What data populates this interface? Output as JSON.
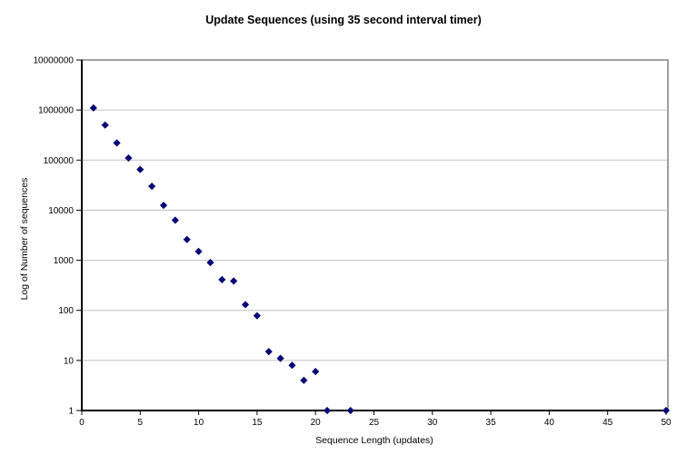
{
  "page": {
    "background": "#FFFFFF"
  },
  "chart_data": {
    "type": "scatter",
    "title": "Update Sequences (using 35 second interval timer)",
    "xlabel": "Sequence Length (updates)",
    "ylabel": "Log of Number of sequences",
    "x_scale": "linear",
    "y_scale": "log",
    "xlim": [
      0,
      50
    ],
    "ylim": [
      1,
      10000000
    ],
    "x_ticks": [
      0,
      5,
      10,
      15,
      20,
      25,
      30,
      35,
      40,
      45,
      50
    ],
    "y_ticks": [
      1,
      10,
      100,
      1000,
      10000,
      100000,
      1000000,
      10000000
    ],
    "grid": "horizontal",
    "legend": "none",
    "marker": "diamond",
    "x": [
      1,
      2,
      3,
      4,
      5,
      6,
      7,
      8,
      9,
      10,
      11,
      12,
      13,
      14,
      15,
      16,
      17,
      18,
      19,
      20,
      21,
      23,
      50
    ],
    "y": [
      1100000,
      500000,
      220000,
      110000,
      65000,
      30000,
      12500,
      6300,
      2600,
      1500,
      900,
      410,
      385,
      130,
      78,
      15,
      11,
      8,
      4,
      6,
      1,
      1,
      1
    ],
    "colors": {
      "marker": "#000080",
      "marker_edge": "#000060",
      "gridline": "#C0C0C0",
      "axis": "#000000",
      "plot_border": "#808080",
      "background": "#FFFFFF",
      "text": "#000000"
    }
  }
}
